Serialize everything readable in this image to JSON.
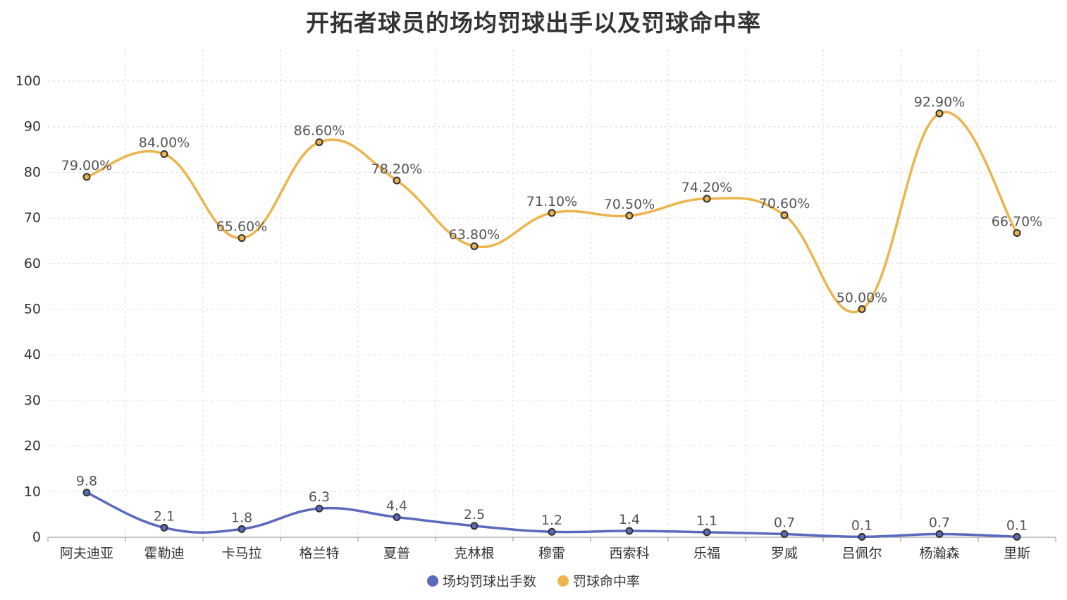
{
  "chart_data": {
    "type": "line",
    "title": "开拓者球员的场均罚球出手以及罚球命中率",
    "categories": [
      "阿夫迪亚",
      "霍勒迪",
      "卡马拉",
      "格兰特",
      "夏普",
      "克林根",
      "穆雷",
      "西索科",
      "乐福",
      "罗威",
      "吕佩尔",
      "杨瀚森",
      "里斯"
    ],
    "series": [
      {
        "name": "场均罚球出手数",
        "color": "#5b6abf",
        "values": [
          9.8,
          2.1,
          1.8,
          6.3,
          4.4,
          2.5,
          1.2,
          1.4,
          1.1,
          0.7,
          0.1,
          0.7,
          0.1
        ],
        "labels": [
          "9.8",
          "2.1",
          "1.8",
          "6.3",
          "4.4",
          "2.5",
          "1.2",
          "1.4",
          "1.1",
          "0.7",
          "0.1",
          "0.7",
          "0.1"
        ]
      },
      {
        "name": "罚球命中率",
        "color": "#ecb44c",
        "values": [
          79.0,
          84.0,
          65.6,
          86.6,
          78.2,
          63.8,
          71.1,
          70.5,
          74.2,
          70.6,
          50.0,
          92.9,
          66.7
        ],
        "labels": [
          "79.00%",
          "84.00%",
          "65.60%",
          "86.60%",
          "78.20%",
          "63.80%",
          "71.10%",
          "70.50%",
          "74.20%",
          "70.60%",
          "50.00%",
          "92.90%",
          "66.70%"
        ]
      }
    ],
    "ylim": [
      0,
      100
    ],
    "yticks": [
      0,
      10,
      20,
      30,
      40,
      50,
      60,
      70,
      80,
      90,
      100
    ],
    "grid": true,
    "legend_position": "bottom"
  }
}
